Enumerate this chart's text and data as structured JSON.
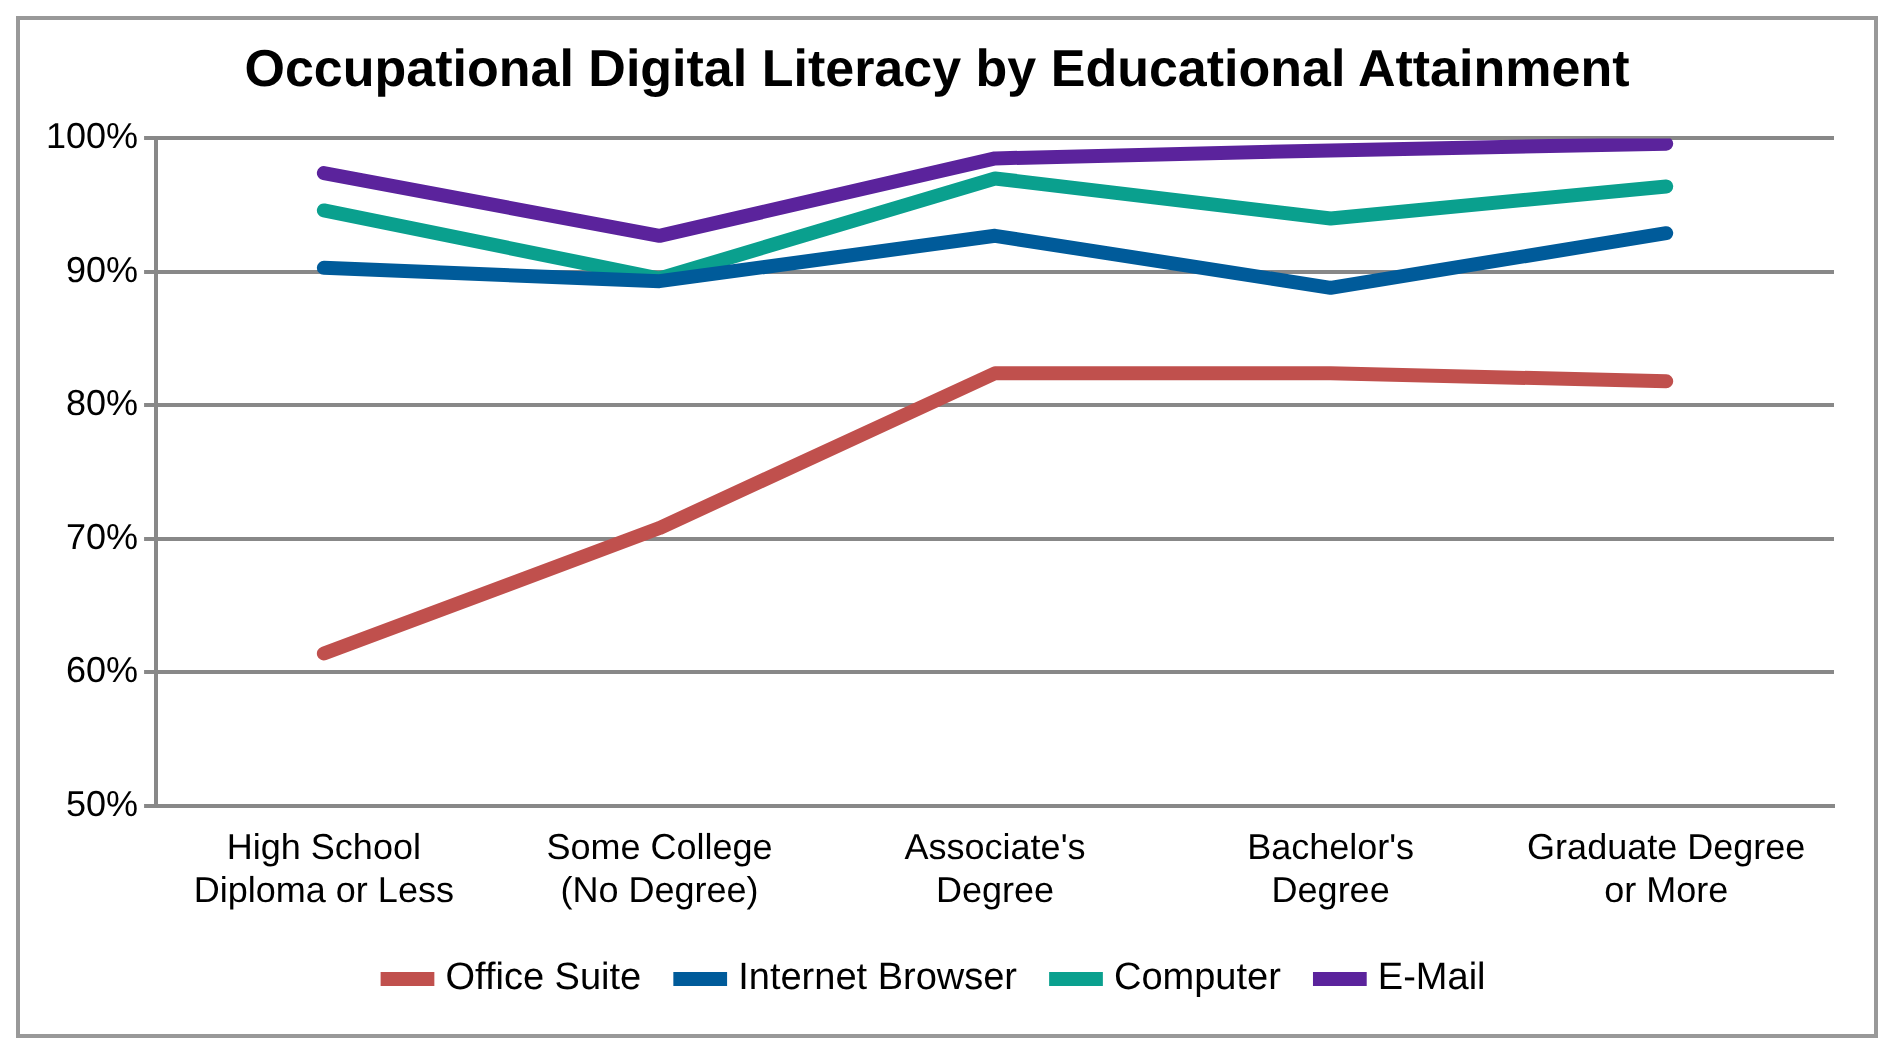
{
  "chart_data": {
    "type": "line",
    "title": "Occupational Digital Literacy by Educational Attainment",
    "categories": [
      "High School Diploma or Less",
      "Some College (No Degree)",
      "Associate's Degree",
      "Bachelor's Degree",
      "Graduate Degree or More"
    ],
    "series": [
      {
        "name": "Office Suite",
        "color": "#c0504d",
        "values": [
          61.4,
          70.8,
          82.4,
          82.4,
          81.8
        ]
      },
      {
        "name": "Internet Browser",
        "color": "#005b9a",
        "values": [
          90.3,
          89.3,
          92.7,
          88.8,
          92.9
        ]
      },
      {
        "name": "Computer",
        "color": "#0aa08e",
        "values": [
          94.6,
          89.5,
          97.0,
          94.0,
          96.4
        ]
      },
      {
        "name": "E-Mail",
        "color": "#5b239c",
        "values": [
          97.4,
          92.7,
          98.5,
          99.1,
          99.6
        ]
      }
    ],
    "ylim": [
      50,
      100
    ],
    "yticks": [
      {
        "value": 50,
        "label": "50%"
      },
      {
        "value": 60,
        "label": "60%"
      },
      {
        "value": 70,
        "label": "70%"
      },
      {
        "value": 80,
        "label": "80%"
      },
      {
        "value": 90,
        "label": "90%"
      },
      {
        "value": 100,
        "label": "100%"
      }
    ],
    "grid": "y",
    "legend": "bottom",
    "marker": "none",
    "line_style": "solid"
  }
}
